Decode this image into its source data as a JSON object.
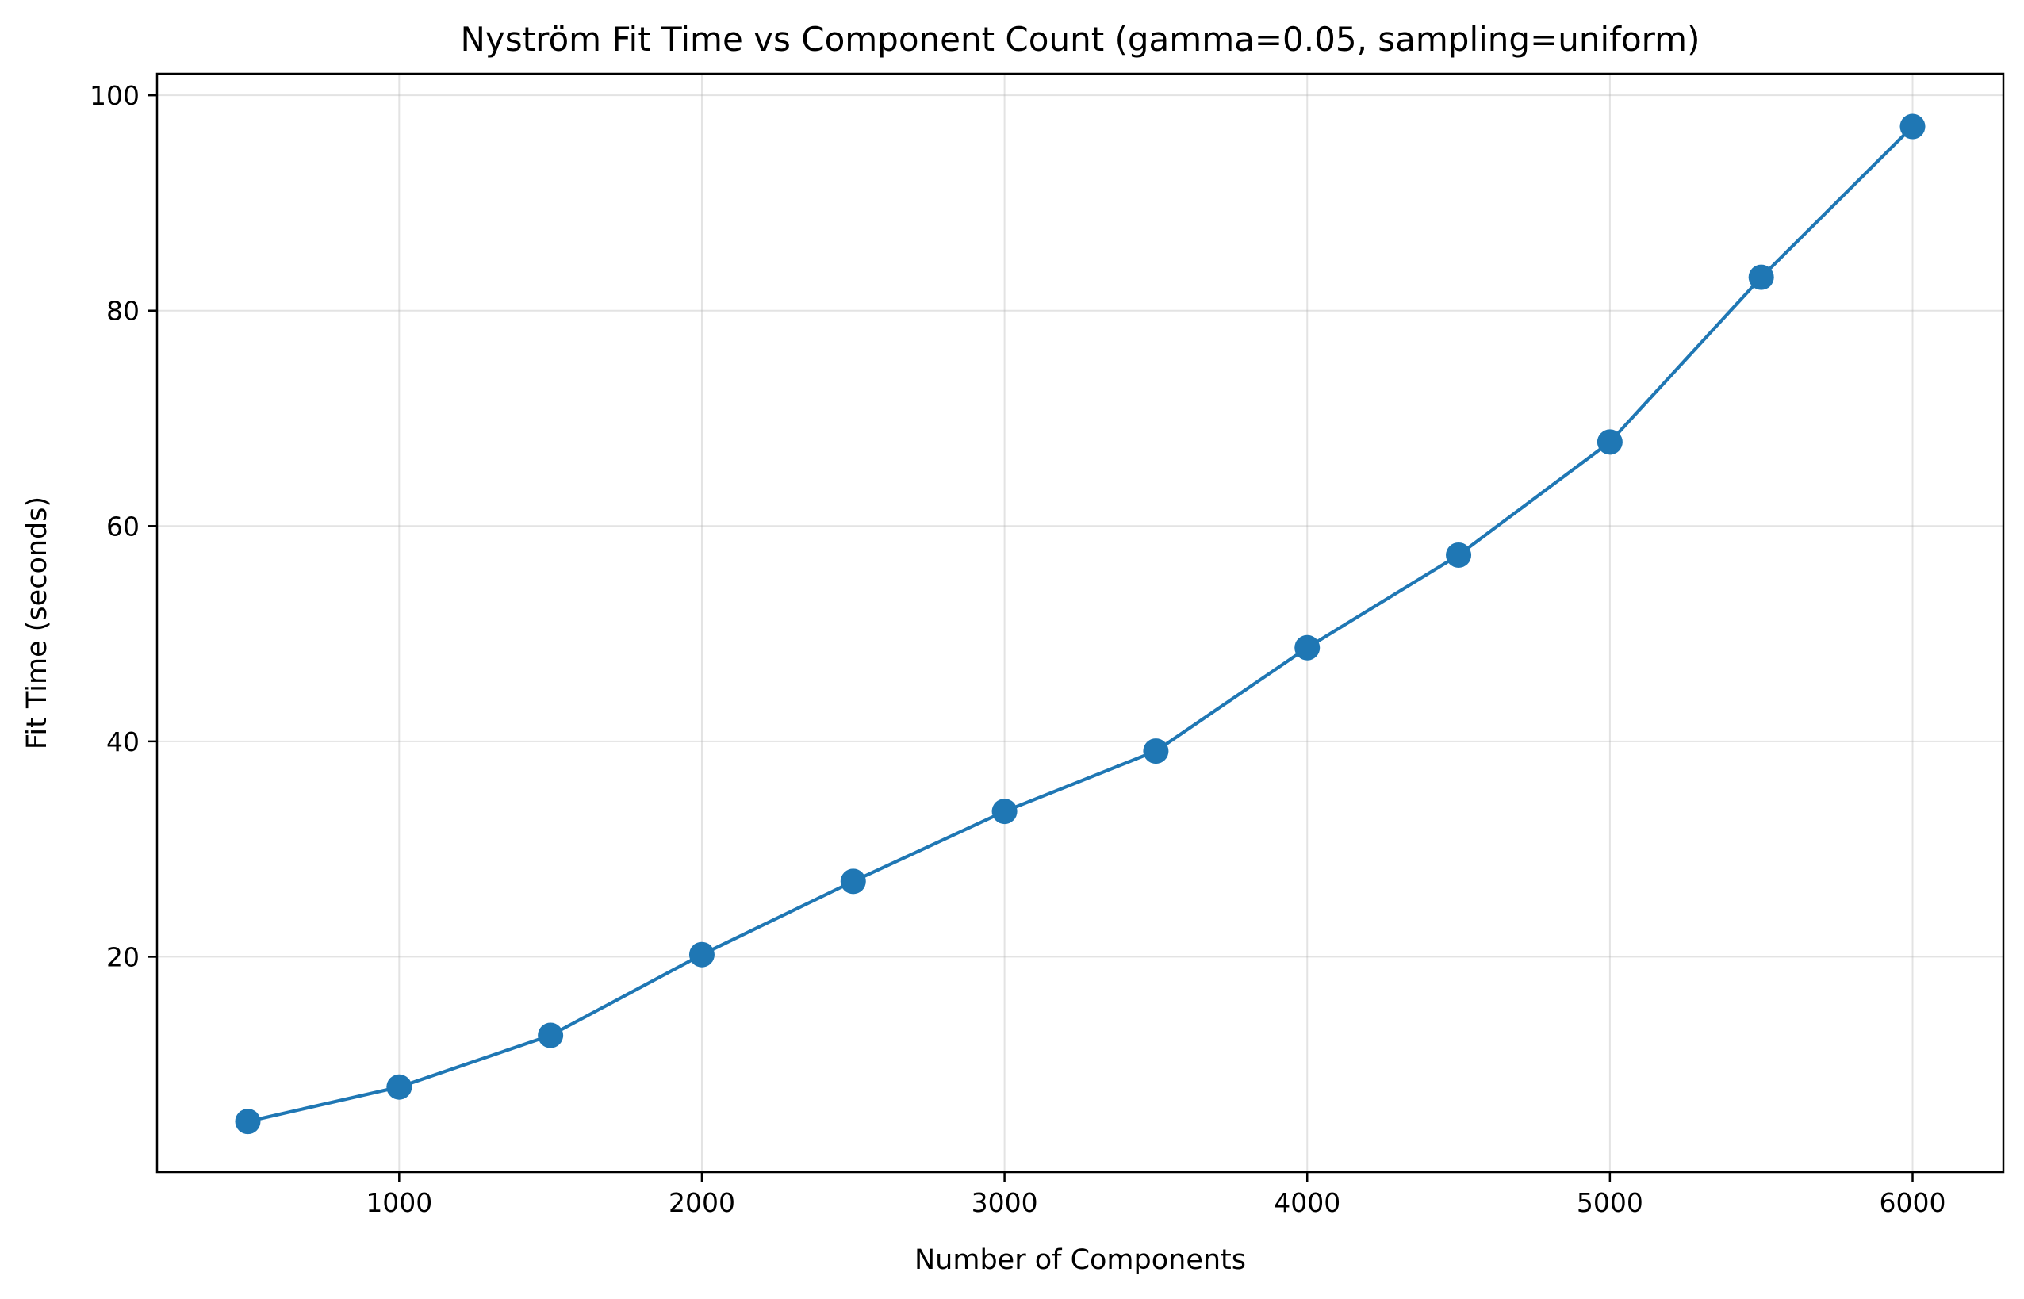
{
  "chart_data": {
    "type": "line",
    "title": "Nyström Fit Time vs Component Count (gamma=0.05, sampling=uniform)",
    "xlabel": "Number of Components",
    "ylabel": "Fit Time (seconds)",
    "xlim": [
      200,
      6300
    ],
    "ylim": [
      0,
      102
    ],
    "x_ticks": [
      1000,
      2000,
      3000,
      4000,
      5000,
      6000
    ],
    "y_ticks": [
      20,
      40,
      60,
      80,
      100
    ],
    "grid": true,
    "legend": "none",
    "series": [
      {
        "color": "#1f77b4",
        "marker": "circle",
        "x": [
          500,
          1000,
          1500,
          2000,
          2500,
          3000,
          3500,
          4000,
          4500,
          5000,
          5500,
          6000
        ],
        "y": [
          4.7,
          7.9,
          12.7,
          20.2,
          27.0,
          33.5,
          39.1,
          48.7,
          57.3,
          67.8,
          83.1,
          97.1
        ]
      }
    ]
  }
}
